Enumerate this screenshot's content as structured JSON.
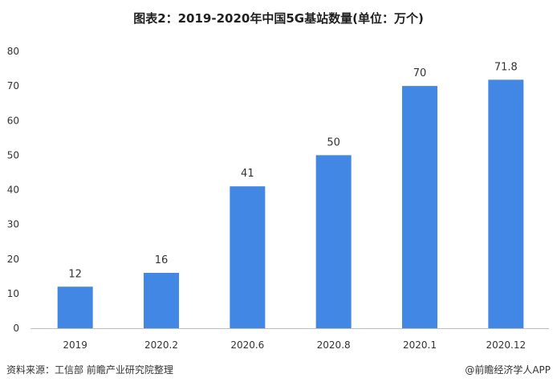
{
  "title": "图表2：2019-2020年中国5G基站数量(单位：万个)",
  "source": "资料来源：工信部 前瞻产业研究院整理",
  "credit": "@前瞻经济学人APP",
  "chart_data": {
    "type": "bar",
    "title": "图表2：2019-2020年中国5G基站数量(单位：万个)",
    "categories": [
      "2019",
      "2020.2",
      "2020.6",
      "2020.8",
      "2020.1",
      "2020.12"
    ],
    "values": [
      12,
      16,
      41,
      50,
      70,
      71.8
    ],
    "value_labels": [
      "12",
      "16",
      "41",
      "50",
      "70",
      "71.8"
    ],
    "y_ticks": [
      0,
      10,
      20,
      30,
      40,
      50,
      60,
      70,
      80
    ],
    "ylim": [
      0,
      80
    ],
    "grid": false,
    "legend": "none",
    "bar_color": "#4287e3"
  }
}
